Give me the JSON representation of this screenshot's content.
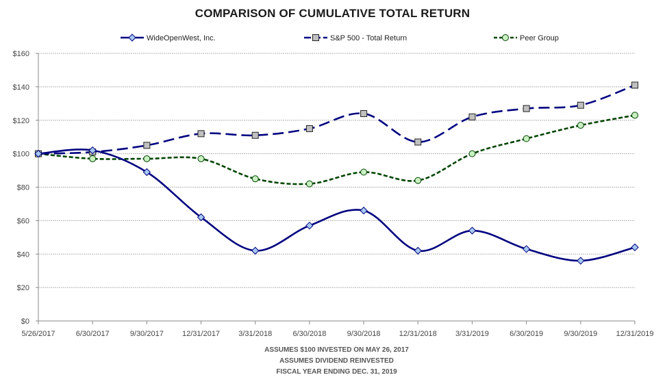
{
  "chart_data": {
    "type": "line",
    "title": "COMPARISON OF CUMULATIVE TOTAL RETURN",
    "categories": [
      "5/26/2017",
      "6/30/2017",
      "9/30/2017",
      "12/31/2017",
      "3/31/2018",
      "6/30/2018",
      "9/30/2018",
      "12/31/2018",
      "3/31/2019",
      "6/30/2019",
      "9/30/2019",
      "12/31/2019"
    ],
    "series": [
      {
        "name": "WideOpenWest, Inc.",
        "color": "#000080",
        "marker_fill": "#a6c8f0",
        "marker": "diamond",
        "dash": "solid",
        "values": [
          100,
          102,
          89,
          62,
          42,
          57,
          66,
          42,
          54,
          43,
          36,
          44
        ]
      },
      {
        "name": "S&P 500 - Total Return",
        "color": "#000080",
        "marker_fill": "#c0c0c0",
        "marker": "square",
        "dash": "long-dash",
        "values": [
          100,
          101,
          105,
          112,
          111,
          115,
          124,
          107,
          122,
          127,
          129,
          141
        ]
      },
      {
        "name": "Peer Group",
        "color": "#004400",
        "marker_fill": "#c8f0c0",
        "marker": "circle",
        "dash": "short-dash",
        "values": [
          100,
          97,
          97,
          97,
          85,
          82,
          89,
          84,
          100,
          109,
          117,
          123
        ]
      }
    ],
    "ylim": [
      0,
      160
    ],
    "y_ticks": [
      "$0",
      "$20",
      "$40",
      "$60",
      "$80",
      "$100",
      "$120",
      "$140",
      "$160"
    ],
    "grid": true,
    "legend_placement": "top"
  },
  "footnotes": [
    "ASSUMES $100 INVESTED ON MAY 26, 2017",
    "ASSUMES DIVIDEND REINVESTED",
    "FISCAL YEAR ENDING DEC. 31, 2019"
  ]
}
